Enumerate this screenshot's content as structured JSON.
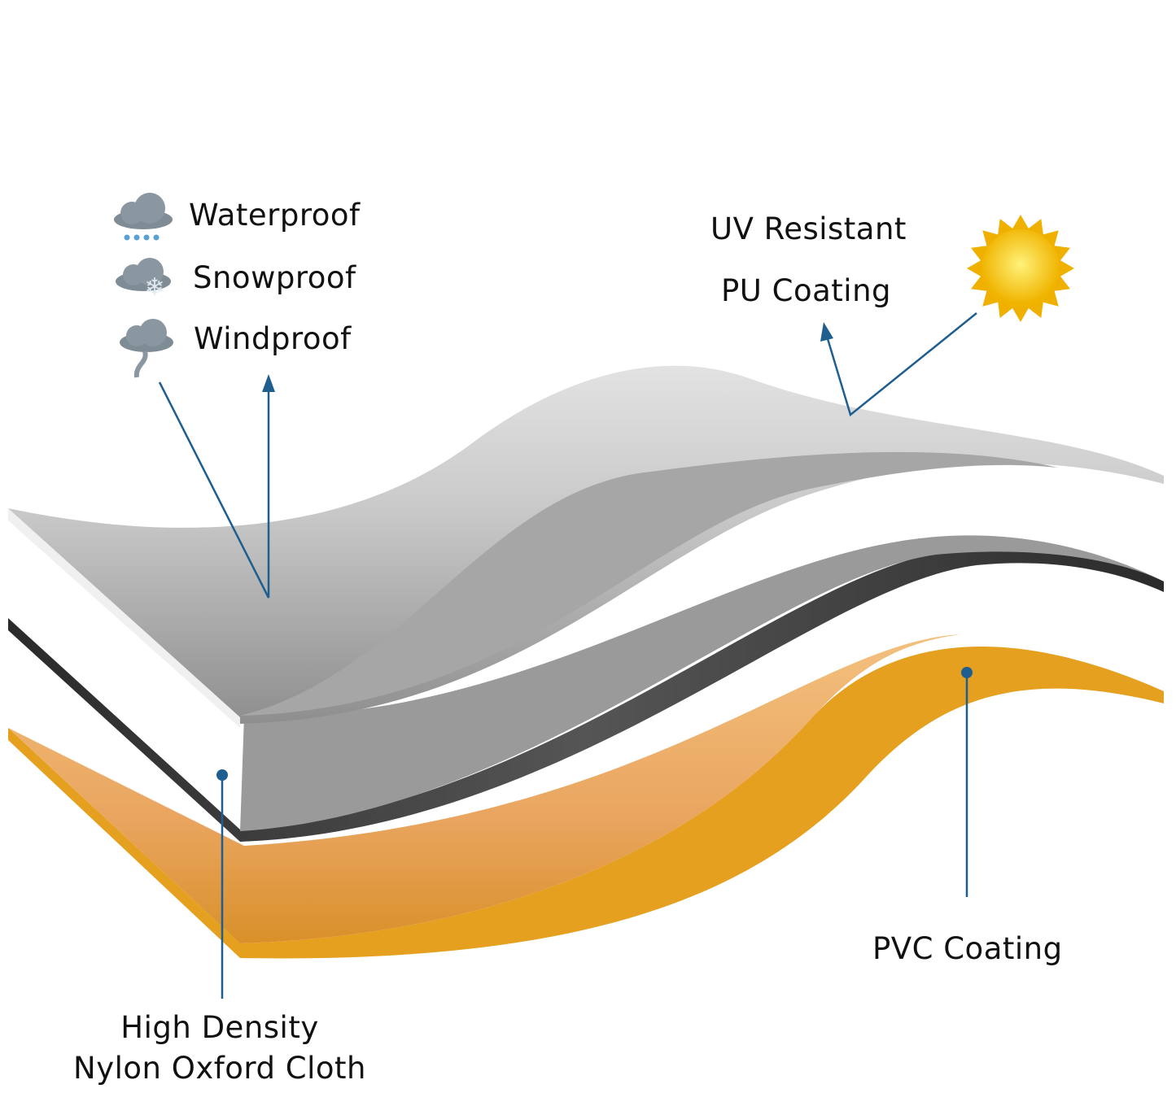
{
  "features": [
    {
      "label": "Waterproof",
      "icon": "rain-cloud-icon"
    },
    {
      "label": "Snowproof",
      "icon": "snow-cloud-icon"
    },
    {
      "label": "Windproof",
      "icon": "wind-cloud-icon"
    }
  ],
  "layers": {
    "top": {
      "line1": "UV Resistant",
      "line2": "PU Coating",
      "color": "#c9c9c9"
    },
    "middle": {
      "line1": "High Density",
      "line2": "Nylon Oxford Cloth",
      "color": "#2a2a2a"
    },
    "bottom": {
      "label": "PVC Coating",
      "color": "#e8a020"
    }
  },
  "colors": {
    "callout": "#1f5f8f",
    "sun": "#f5c400"
  }
}
